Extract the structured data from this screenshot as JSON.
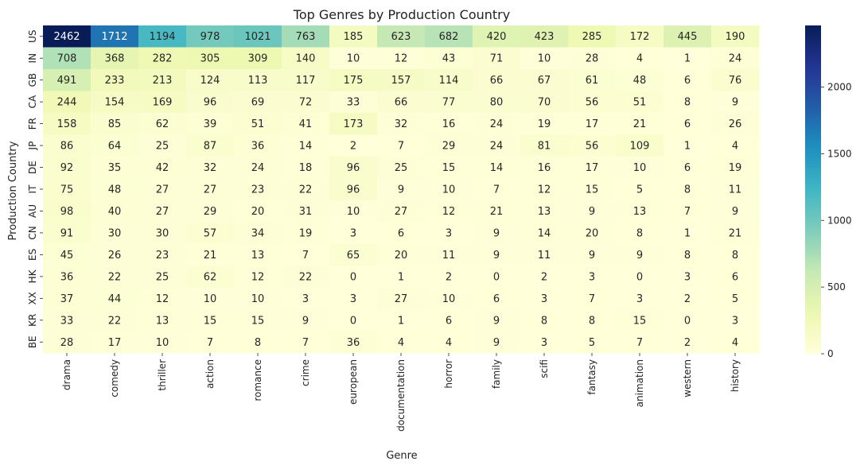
{
  "chart_data": {
    "type": "heatmap",
    "title": "Top Genres by Production Country",
    "xlabel": "Genre",
    "ylabel": "Production Country",
    "x_categories": [
      "drama",
      "comedy",
      "thriller",
      "action",
      "romance",
      "crime",
      "european",
      "documentation",
      "horror",
      "family",
      "scifi",
      "fantasy",
      "animation",
      "western",
      "history"
    ],
    "y_categories": [
      "US",
      "IN",
      "GB",
      "CA",
      "FR",
      "JP",
      "DE",
      "IT",
      "AU",
      "CN",
      "ES",
      "HK",
      "XX",
      "KR",
      "BE"
    ],
    "values": [
      [
        2462,
        1712,
        1194,
        978,
        1021,
        763,
        185,
        623,
        682,
        420,
        423,
        285,
        172,
        445,
        190
      ],
      [
        708,
        368,
        282,
        305,
        309,
        140,
        10,
        12,
        43,
        71,
        10,
        28,
        4,
        1,
        24
      ],
      [
        491,
        233,
        213,
        124,
        113,
        117,
        175,
        157,
        114,
        66,
        67,
        61,
        48,
        6,
        76
      ],
      [
        244,
        154,
        169,
        96,
        69,
        72,
        33,
        66,
        77,
        80,
        70,
        56,
        51,
        8,
        9
      ],
      [
        158,
        85,
        62,
        39,
        51,
        41,
        173,
        32,
        16,
        24,
        19,
        17,
        21,
        6,
        26
      ],
      [
        86,
        64,
        25,
        87,
        36,
        14,
        2,
        7,
        29,
        24,
        81,
        56,
        109,
        1,
        4
      ],
      [
        92,
        35,
        42,
        32,
        24,
        18,
        96,
        25,
        15,
        14,
        16,
        17,
        10,
        6,
        19
      ],
      [
        75,
        48,
        27,
        27,
        23,
        22,
        96,
        9,
        10,
        7,
        12,
        15,
        5,
        8,
        11
      ],
      [
        98,
        40,
        27,
        29,
        20,
        31,
        10,
        27,
        12,
        21,
        13,
        9,
        13,
        7,
        9
      ],
      [
        91,
        30,
        30,
        57,
        34,
        19,
        3,
        6,
        3,
        9,
        14,
        20,
        8,
        1,
        21
      ],
      [
        45,
        26,
        23,
        21,
        13,
        7,
        65,
        20,
        11,
        9,
        11,
        9,
        9,
        8,
        8
      ],
      [
        36,
        22,
        25,
        62,
        12,
        22,
        0,
        1,
        2,
        0,
        2,
        3,
        0,
        3,
        6
      ],
      [
        37,
        44,
        12,
        10,
        10,
        3,
        3,
        27,
        10,
        6,
        3,
        7,
        3,
        2,
        5
      ],
      [
        33,
        22,
        13,
        15,
        15,
        9,
        0,
        1,
        6,
        9,
        8,
        8,
        15,
        0,
        3
      ],
      [
        28,
        17,
        10,
        7,
        8,
        7,
        36,
        4,
        4,
        9,
        3,
        5,
        7,
        2,
        4
      ]
    ],
    "colorbar": {
      "min": 0,
      "max": 2462,
      "ticks": [
        0,
        500,
        1000,
        1500,
        2000
      ]
    },
    "colormap": "YlGnBu",
    "annotations": true
  }
}
